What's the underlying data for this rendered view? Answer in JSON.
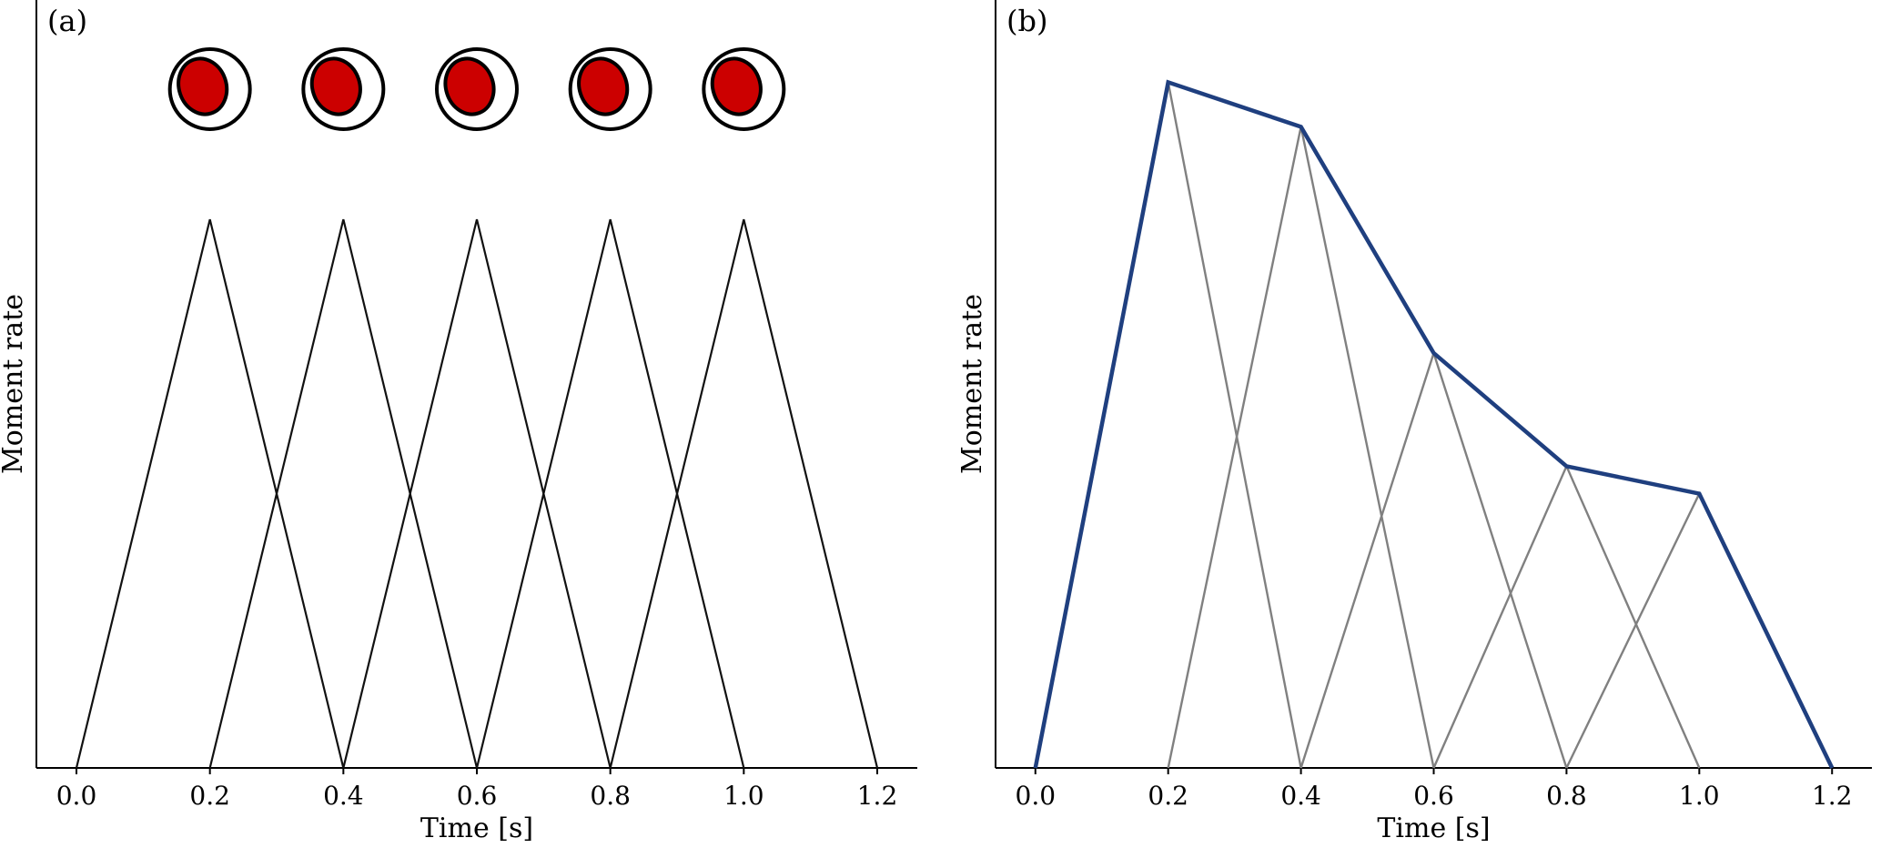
{
  "chart_data": [
    {
      "type": "line",
      "panel_label": "(a)",
      "xlabel": "Time [s]",
      "ylabel": "Moment rate",
      "xlim": [
        -0.06,
        1.26
      ],
      "ylim": [
        0,
        1.12
      ],
      "xticks": [
        0.0,
        0.2,
        0.4,
        0.6,
        0.8,
        1.0,
        1.2
      ],
      "xtick_labels": [
        "0.0",
        "0.2",
        "0.4",
        "0.6",
        "0.8",
        "1.0",
        "1.2"
      ],
      "grid": false,
      "subfaults": [
        {
          "x": [
            0.0,
            0.2,
            0.4
          ],
          "y": [
            0,
            0.8,
            0
          ]
        },
        {
          "x": [
            0.2,
            0.4,
            0.6
          ],
          "y": [
            0,
            0.8,
            0
          ]
        },
        {
          "x": [
            0.4,
            0.6,
            0.8
          ],
          "y": [
            0,
            0.8,
            0
          ]
        },
        {
          "x": [
            0.6,
            0.8,
            1.0
          ],
          "y": [
            0,
            0.8,
            0
          ]
        },
        {
          "x": [
            0.8,
            1.0,
            1.2
          ],
          "y": [
            0,
            0.8,
            0
          ]
        }
      ],
      "subfault_color": "#111111",
      "mechanisms": {
        "x": [
          0.2,
          0.4,
          0.6,
          0.8,
          1.0
        ],
        "y": 0.99,
        "fill_color": "#cc0000",
        "icon": "focal-mechanism-beachball-icon"
      }
    },
    {
      "type": "line",
      "panel_label": "(b)",
      "xlabel": "Time [s]",
      "ylabel": "Moment rate",
      "xlim": [
        -0.06,
        1.26
      ],
      "ylim": [
        0,
        1.12
      ],
      "xticks": [
        0.0,
        0.2,
        0.4,
        0.6,
        0.8,
        1.0,
        1.2
      ],
      "xtick_labels": [
        "0.0",
        "0.2",
        "0.4",
        "0.6",
        "0.8",
        "1.0",
        "1.2"
      ],
      "grid": false,
      "subfaults": [
        {
          "x": [
            0.0,
            0.2,
            0.4
          ],
          "y": [
            0,
            1.0,
            0
          ]
        },
        {
          "x": [
            0.2,
            0.4,
            0.6
          ],
          "y": [
            0,
            0.935,
            0
          ]
        },
        {
          "x": [
            0.4,
            0.6,
            0.8
          ],
          "y": [
            0,
            0.605,
            0
          ]
        },
        {
          "x": [
            0.6,
            0.8,
            1.0
          ],
          "y": [
            0,
            0.44,
            0
          ]
        },
        {
          "x": [
            0.8,
            1.0,
            1.2
          ],
          "y": [
            0,
            0.4,
            0
          ]
        }
      ],
      "subfault_color": "#808080",
      "envelope": {
        "x": [
          0.0,
          0.2,
          0.4,
          0.6,
          0.8,
          1.0,
          1.2
        ],
        "y": [
          0,
          1.0,
          0.935,
          0.605,
          0.44,
          0.4,
          0
        ],
        "color": "#1f3f7f"
      }
    }
  ]
}
